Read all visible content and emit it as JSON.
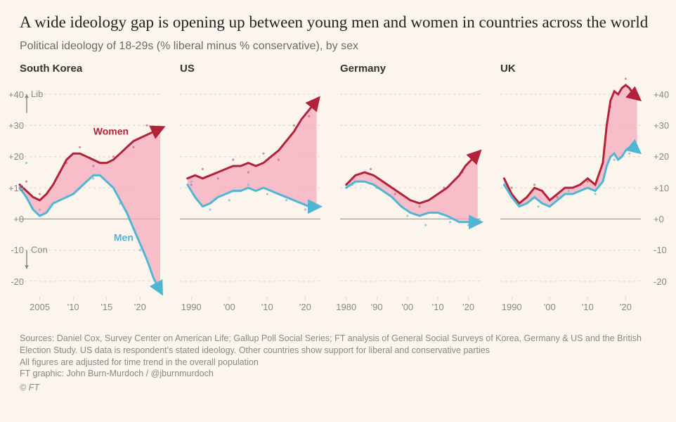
{
  "title": "A wide ideology gap is opening up between young men and women in countries across the world",
  "subtitle": "Political ideology of 18-29s (% liberal minus % conservative), by sex",
  "y_axis": {
    "ticks": [
      40,
      30,
      20,
      10,
      0,
      -10,
      -20
    ],
    "tick_labels": [
      "+40",
      "+30",
      "+20",
      "+10",
      "+0",
      "-10",
      "-20"
    ],
    "range": [
      -25,
      45
    ],
    "lib_label": "Lib",
    "con_label": "Con"
  },
  "series_labels": {
    "women": "Women",
    "men": "Men"
  },
  "colors": {
    "women_line": "#b2233a",
    "men_line": "#4fb6d4",
    "gap_fill": "#f6a9bb",
    "gap_fill_opacity": 0.75,
    "grid": "#d9d2c8",
    "zero_line": "#999",
    "text": "#333",
    "muted": "#888",
    "dot_women": "#c06a78",
    "dot_men": "#6fb9cc",
    "bg": "#fcf5ed"
  },
  "line_width": 3,
  "dot_radius": 1.6,
  "panels": [
    {
      "name": "South Korea",
      "x_range": [
        2002,
        2023
      ],
      "x_ticks": [
        2005,
        2010,
        2015,
        2020
      ],
      "x_tick_labels": [
        "2005",
        "'10",
        "'15",
        "'20"
      ],
      "women": [
        [
          2002,
          11
        ],
        [
          2003,
          9
        ],
        [
          2004,
          7
        ],
        [
          2005,
          6
        ],
        [
          2006,
          8
        ],
        [
          2007,
          11
        ],
        [
          2008,
          15
        ],
        [
          2009,
          19
        ],
        [
          2010,
          21
        ],
        [
          2011,
          21
        ],
        [
          2012,
          20
        ],
        [
          2013,
          19
        ],
        [
          2014,
          18
        ],
        [
          2015,
          18
        ],
        [
          2016,
          19
        ],
        [
          2017,
          21
        ],
        [
          2018,
          23
        ],
        [
          2019,
          25
        ],
        [
          2020,
          26
        ],
        [
          2021,
          27
        ],
        [
          2022,
          28
        ],
        [
          2023,
          29
        ]
      ],
      "men": [
        [
          2002,
          10
        ],
        [
          2003,
          7
        ],
        [
          2004,
          3
        ],
        [
          2005,
          1
        ],
        [
          2006,
          2
        ],
        [
          2007,
          5
        ],
        [
          2008,
          6
        ],
        [
          2009,
          7
        ],
        [
          2010,
          8
        ],
        [
          2011,
          10
        ],
        [
          2012,
          12
        ],
        [
          2013,
          14
        ],
        [
          2014,
          14
        ],
        [
          2015,
          12
        ],
        [
          2016,
          10
        ],
        [
          2017,
          6
        ],
        [
          2018,
          2
        ],
        [
          2019,
          -3
        ],
        [
          2020,
          -8
        ],
        [
          2021,
          -13
        ],
        [
          2022,
          -19
        ],
        [
          2023,
          -23
        ]
      ],
      "dots_women": [
        [
          2003,
          12
        ],
        [
          2005,
          8
        ],
        [
          2009,
          18
        ],
        [
          2011,
          23
        ],
        [
          2013,
          17
        ],
        [
          2016,
          20
        ],
        [
          2019,
          23
        ],
        [
          2021,
          30
        ]
      ],
      "dots_men": [
        [
          2003,
          18
        ],
        [
          2005,
          3
        ],
        [
          2009,
          7
        ],
        [
          2013,
          13
        ],
        [
          2017,
          5
        ],
        [
          2020,
          -10
        ]
      ],
      "arrow_women_dir": [
        1,
        0.2
      ],
      "arrow_men_dir": [
        0.3,
        -1
      ]
    },
    {
      "name": "US",
      "x_range": [
        1987,
        2024
      ],
      "x_ticks": [
        1990,
        2000,
        2010,
        2020
      ],
      "x_tick_labels": [
        "1990",
        "'00",
        "'10",
        "'20"
      ],
      "women": [
        [
          1989,
          13
        ],
        [
          1991,
          14
        ],
        [
          1993,
          13
        ],
        [
          1995,
          14
        ],
        [
          1997,
          15
        ],
        [
          1999,
          16
        ],
        [
          2001,
          17
        ],
        [
          2003,
          17
        ],
        [
          2005,
          18
        ],
        [
          2007,
          17
        ],
        [
          2009,
          18
        ],
        [
          2011,
          20
        ],
        [
          2013,
          22
        ],
        [
          2015,
          25
        ],
        [
          2017,
          28
        ],
        [
          2019,
          32
        ],
        [
          2021,
          35
        ],
        [
          2023,
          38
        ]
      ],
      "men": [
        [
          1989,
          11
        ],
        [
          1991,
          7
        ],
        [
          1993,
          4
        ],
        [
          1995,
          5
        ],
        [
          1997,
          7
        ],
        [
          1999,
          8
        ],
        [
          2001,
          9
        ],
        [
          2003,
          9
        ],
        [
          2005,
          10
        ],
        [
          2007,
          9
        ],
        [
          2009,
          10
        ],
        [
          2011,
          9
        ],
        [
          2013,
          8
        ],
        [
          2015,
          7
        ],
        [
          2017,
          6
        ],
        [
          2019,
          5
        ],
        [
          2021,
          4
        ],
        [
          2023,
          4
        ]
      ],
      "dots_women": [
        [
          1990,
          11
        ],
        [
          1993,
          16
        ],
        [
          1997,
          13
        ],
        [
          2001,
          19
        ],
        [
          2005,
          15
        ],
        [
          2009,
          21
        ],
        [
          2013,
          19
        ],
        [
          2017,
          30
        ],
        [
          2021,
          33
        ]
      ],
      "dots_men": [
        [
          1990,
          12
        ],
        [
          1995,
          3
        ],
        [
          2000,
          6
        ],
        [
          2005,
          11
        ],
        [
          2010,
          8
        ],
        [
          2015,
          6
        ],
        [
          2020,
          3
        ]
      ],
      "arrow_women_dir": [
        0.6,
        1
      ],
      "arrow_men_dir": [
        1,
        -0.05
      ]
    },
    {
      "name": "Germany",
      "x_range": [
        1978,
        2024
      ],
      "x_ticks": [
        1980,
        1990,
        2000,
        2010,
        2020
      ],
      "x_tick_labels": [
        "1980",
        "'90",
        "'00",
        "'10",
        "'20"
      ],
      "women": [
        [
          1980,
          11
        ],
        [
          1983,
          14
        ],
        [
          1986,
          15
        ],
        [
          1989,
          14
        ],
        [
          1992,
          12
        ],
        [
          1995,
          10
        ],
        [
          1998,
          8
        ],
        [
          2001,
          6
        ],
        [
          2004,
          5
        ],
        [
          2007,
          6
        ],
        [
          2010,
          8
        ],
        [
          2013,
          10
        ],
        [
          2015,
          12
        ],
        [
          2017,
          14
        ],
        [
          2019,
          17
        ],
        [
          2021,
          19
        ],
        [
          2023,
          21
        ]
      ],
      "men": [
        [
          1980,
          10
        ],
        [
          1983,
          12
        ],
        [
          1986,
          12
        ],
        [
          1989,
          11
        ],
        [
          1992,
          9
        ],
        [
          1995,
          7
        ],
        [
          1998,
          4
        ],
        [
          2001,
          2
        ],
        [
          2004,
          1
        ],
        [
          2007,
          2
        ],
        [
          2010,
          2
        ],
        [
          2013,
          1
        ],
        [
          2015,
          0
        ],
        [
          2017,
          -1
        ],
        [
          2019,
          -1
        ],
        [
          2021,
          -1
        ],
        [
          2023,
          -1
        ]
      ],
      "dots_women": [
        [
          1982,
          13
        ],
        [
          1988,
          16
        ],
        [
          1996,
          8
        ],
        [
          2004,
          4
        ],
        [
          2012,
          10
        ],
        [
          2018,
          15
        ],
        [
          2022,
          20
        ]
      ],
      "dots_men": [
        [
          1982,
          11
        ],
        [
          1990,
          10
        ],
        [
          2000,
          1
        ],
        [
          2006,
          -2
        ],
        [
          2014,
          -1
        ],
        [
          2020,
          -2
        ]
      ],
      "arrow_women_dir": [
        0.8,
        0.9
      ],
      "arrow_men_dir": [
        1,
        0
      ]
    },
    {
      "name": "UK",
      "x_range": [
        1987,
        2024
      ],
      "x_ticks": [
        1990,
        2000,
        2010,
        2020
      ],
      "x_tick_labels": [
        "1990",
        "'00",
        "'10",
        "'20"
      ],
      "women": [
        [
          1988,
          13
        ],
        [
          1990,
          8
        ],
        [
          1992,
          5
        ],
        [
          1994,
          7
        ],
        [
          1996,
          10
        ],
        [
          1998,
          9
        ],
        [
          2000,
          6
        ],
        [
          2002,
          8
        ],
        [
          2004,
          10
        ],
        [
          2006,
          10
        ],
        [
          2008,
          11
        ],
        [
          2010,
          13
        ],
        [
          2012,
          11
        ],
        [
          2014,
          18
        ],
        [
          2015,
          30
        ],
        [
          2016,
          38
        ],
        [
          2017,
          41
        ],
        [
          2018,
          40
        ],
        [
          2019,
          42
        ],
        [
          2020,
          43
        ],
        [
          2021,
          42
        ],
        [
          2022,
          40
        ],
        [
          2023,
          39
        ]
      ],
      "men": [
        [
          1988,
          11
        ],
        [
          1990,
          7
        ],
        [
          1992,
          4
        ],
        [
          1994,
          5
        ],
        [
          1996,
          7
        ],
        [
          1998,
          5
        ],
        [
          2000,
          4
        ],
        [
          2002,
          6
        ],
        [
          2004,
          8
        ],
        [
          2006,
          8
        ],
        [
          2008,
          9
        ],
        [
          2010,
          10
        ],
        [
          2012,
          9
        ],
        [
          2014,
          12
        ],
        [
          2015,
          17
        ],
        [
          2016,
          20
        ],
        [
          2017,
          21
        ],
        [
          2018,
          19
        ],
        [
          2019,
          20
        ],
        [
          2020,
          22
        ],
        [
          2021,
          23
        ],
        [
          2022,
          23
        ],
        [
          2023,
          22
        ]
      ],
      "dots_women": [
        [
          1990,
          10
        ],
        [
          1996,
          11
        ],
        [
          2002,
          7
        ],
        [
          2010,
          12
        ],
        [
          2016,
          36
        ],
        [
          2020,
          45
        ]
      ],
      "dots_men": [
        [
          1990,
          8
        ],
        [
          1997,
          4
        ],
        [
          2005,
          9
        ],
        [
          2012,
          8
        ],
        [
          2017,
          19
        ],
        [
          2021,
          21
        ]
      ],
      "arrow_women_dir": [
        1,
        -0.3
      ],
      "arrow_men_dir": [
        1,
        -0.15
      ]
    }
  ],
  "footnotes": [
    "Sources: Daniel Cox, Survey Center on American Life; Gallup Poll Social Series; FT analysis of General Social Surveys of Korea, Germany & US and the British Election Study. US data is respondent's stated ideology. Other countries show support for liberal and conservative parties",
    "All figures are adjusted for time trend in the overall population",
    "FT graphic: John Burn-Murdoch / @jburnmurdoch"
  ],
  "copyright": "© FT"
}
